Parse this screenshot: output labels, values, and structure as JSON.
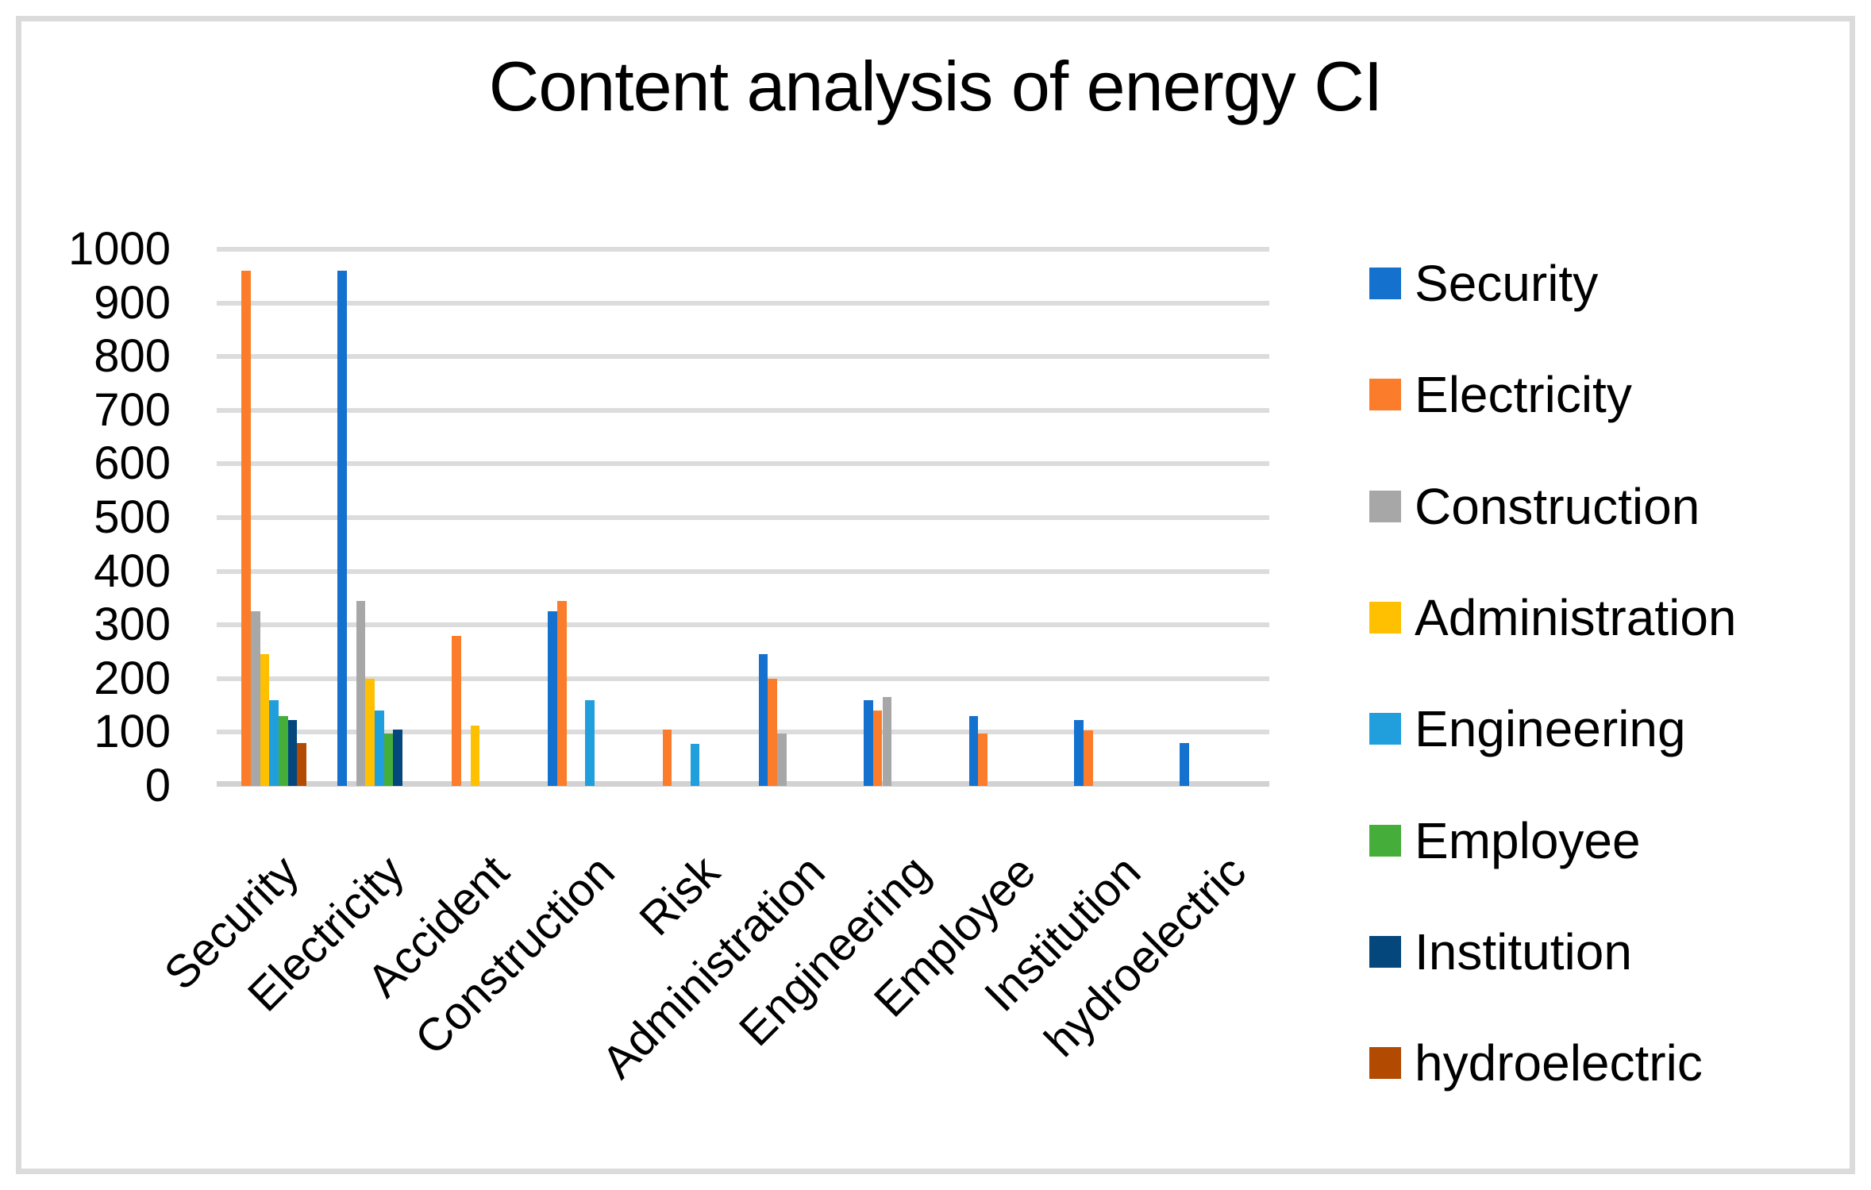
{
  "chart_data": {
    "type": "bar",
    "title": "Content analysis of energy CI",
    "categories": [
      "Security",
      "Electricity",
      "Accident",
      "Construction",
      "Risk",
      "Administration",
      "Engineering",
      "Employee",
      "Institution",
      "hydroelectric"
    ],
    "series": [
      {
        "name": "Security",
        "color": "#1471CE",
        "values": [
          0,
          960,
          0,
          325,
          0,
          245,
          160,
          130,
          123,
          80
        ]
      },
      {
        "name": "Electricity",
        "color": "#FB7D2B",
        "values": [
          960,
          0,
          280,
          345,
          105,
          200,
          140,
          97,
          103,
          0
        ]
      },
      {
        "name": "Construction",
        "color": "#A7A7A7",
        "values": [
          325,
          345,
          0,
          0,
          0,
          97,
          165,
          0,
          0,
          0
        ]
      },
      {
        "name": "Administration",
        "color": "#FEC001",
        "values": [
          245,
          200,
          113,
          0,
          0,
          0,
          0,
          0,
          0,
          0
        ]
      },
      {
        "name": "Engineering",
        "color": "#219FDD",
        "values": [
          160,
          140,
          0,
          160,
          78,
          0,
          0,
          0,
          0,
          0
        ]
      },
      {
        "name": "Employee",
        "color": "#45AE3B",
        "values": [
          130,
          97,
          0,
          0,
          0,
          0,
          0,
          0,
          0,
          0
        ]
      },
      {
        "name": "Institution",
        "color": "#04477D",
        "values": [
          123,
          105,
          0,
          0,
          0,
          0,
          0,
          0,
          0,
          0
        ]
      },
      {
        "name": "hydroelectric",
        "color": "#B24A02",
        "values": [
          80,
          0,
          0,
          0,
          0,
          0,
          0,
          0,
          0,
          0
        ]
      }
    ],
    "xlabel": "",
    "ylabel": "",
    "ylim": [
      0,
      1000
    ],
    "y_ticks": [
      "0",
      "100",
      "200",
      "300",
      "400",
      "500",
      "600",
      "700",
      "800",
      "900",
      "1000"
    ],
    "grid": true,
    "legend_position": "right",
    "x_tick_rotation_deg": 45
  }
}
